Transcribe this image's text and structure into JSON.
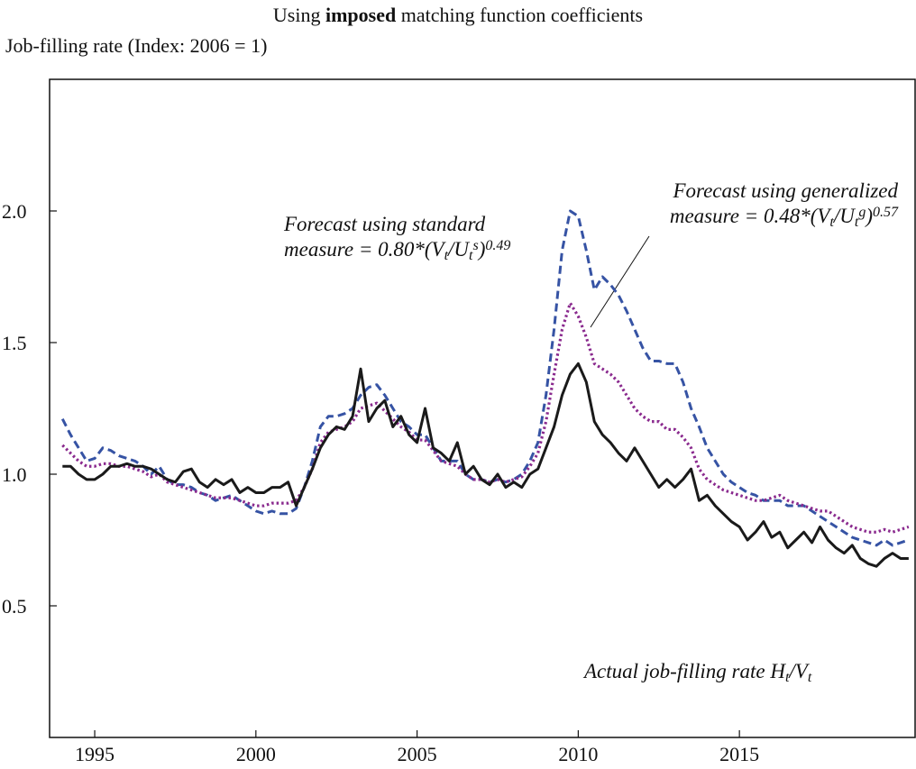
{
  "chart_data": {
    "type": "line",
    "title": [
      {
        "text": "Using "
      },
      {
        "text": "imposed",
        "bold": true
      },
      {
        "text": " matching function coefficients"
      }
    ],
    "y_label": "Job-filling rate (Index: 2006 = 1)",
    "xlim": [
      1993.6,
      2020.45
    ],
    "ylim": [
      0,
      2.5
    ],
    "xticks": [
      1995,
      2000,
      2005,
      2010,
      2015
    ],
    "yticks": [
      0.5,
      {
        "value": 1,
        "label": "1.0"
      },
      1.5,
      {
        "value": 2,
        "label": "2.0"
      }
    ],
    "x": [
      1994,
      1994.25,
      1994.5,
      1994.75,
      1995,
      1995.25,
      1995.5,
      1995.75,
      1996,
      1996.25,
      1996.5,
      1996.75,
      1997,
      1997.25,
      1997.5,
      1997.75,
      1998,
      1998.25,
      1998.5,
      1998.75,
      1999,
      1999.25,
      1999.5,
      1999.75,
      2000,
      2000.25,
      2000.5,
      2000.75,
      2001,
      2001.25,
      2001.5,
      2001.75,
      2002,
      2002.25,
      2002.5,
      2002.75,
      2003,
      2003.25,
      2003.5,
      2003.75,
      2004,
      2004.25,
      2004.5,
      2004.75,
      2005,
      2005.25,
      2005.5,
      2005.75,
      2006,
      2006.25,
      2006.5,
      2006.75,
      2007,
      2007.25,
      2007.5,
      2007.75,
      2008,
      2008.25,
      2008.5,
      2008.75,
      2009,
      2009.25,
      2009.5,
      2009.75,
      2010,
      2010.25,
      2010.5,
      2010.75,
      2011,
      2011.25,
      2011.5,
      2011.75,
      2012,
      2012.25,
      2012.5,
      2012.75,
      2013,
      2013.25,
      2013.5,
      2013.75,
      2014,
      2014.25,
      2014.5,
      2014.75,
      2015,
      2015.25,
      2015.5,
      2015.75,
      2016,
      2016.25,
      2016.5,
      2016.75,
      2017,
      2017.25,
      2017.5,
      2017.75,
      2018,
      2018.25,
      2018.5,
      2018.75,
      2019,
      2019.25,
      2019.5,
      2019.75,
      2020,
      2020.25
    ],
    "series": [
      {
        "color": "#1a1a1a",
        "dash": "solid",
        "label": [
          [
            {
              "text": "Actual job-filling rate H"
            },
            {
              "text": "t",
              "pos": "sub"
            },
            {
              "text": "/V"
            },
            {
              "text": "t",
              "pos": "sub"
            }
          ]
        ],
        "values": [
          1.03,
          1.03,
          1.0,
          0.98,
          0.98,
          1.0,
          1.03,
          1.03,
          1.04,
          1.03,
          1.03,
          1.02,
          1.0,
          0.98,
          0.97,
          1.01,
          1.02,
          0.97,
          0.95,
          0.98,
          0.96,
          0.98,
          0.93,
          0.95,
          0.93,
          0.93,
          0.95,
          0.95,
          0.97,
          0.88,
          0.95,
          1.02,
          1.1,
          1.15,
          1.18,
          1.17,
          1.22,
          1.4,
          1.2,
          1.25,
          1.28,
          1.18,
          1.22,
          1.15,
          1.12,
          1.25,
          1.1,
          1.08,
          1.05,
          1.12,
          1.0,
          1.03,
          0.98,
          0.96,
          1.0,
          0.95,
          0.97,
          0.95,
          1.0,
          1.02,
          1.1,
          1.18,
          1.3,
          1.38,
          1.42,
          1.35,
          1.2,
          1.15,
          1.12,
          1.08,
          1.05,
          1.1,
          1.05,
          1.0,
          0.95,
          0.98,
          0.95,
          0.98,
          1.02,
          0.9,
          0.92,
          0.88,
          0.85,
          0.82,
          0.8,
          0.75,
          0.78,
          0.82,
          0.76,
          0.78,
          0.72,
          0.75,
          0.78,
          0.74,
          0.8,
          0.75,
          0.72,
          0.7,
          0.73,
          0.68,
          0.66,
          0.65,
          0.68,
          0.7,
          0.68,
          0.68
        ]
      },
      {
        "color": "#3653a4",
        "dash": "dashed",
        "label": [
          [
            {
              "text": "Forecast using standard"
            }
          ],
          [
            {
              "text": "measure = 0.80*(V"
            },
            {
              "text": "t",
              "pos": "sub"
            },
            {
              "text": "/U"
            },
            {
              "text": "t",
              "pos": "sub"
            },
            {
              "text": "s",
              "pos": "sup"
            },
            {
              "text": ")"
            },
            {
              "text": "0.49",
              "pos": "sup"
            }
          ]
        ],
        "values": [
          1.21,
          1.15,
          1.1,
          1.05,
          1.06,
          1.1,
          1.09,
          1.07,
          1.06,
          1.05,
          1.03,
          1.0,
          1.03,
          0.98,
          0.96,
          0.96,
          0.95,
          0.93,
          0.92,
          0.9,
          0.91,
          0.92,
          0.9,
          0.88,
          0.86,
          0.85,
          0.86,
          0.85,
          0.85,
          0.87,
          0.95,
          1.05,
          1.18,
          1.22,
          1.22,
          1.23,
          1.25,
          1.3,
          1.33,
          1.34,
          1.3,
          1.25,
          1.2,
          1.18,
          1.15,
          1.15,
          1.1,
          1.05,
          1.05,
          1.05,
          1.0,
          0.98,
          0.98,
          0.97,
          0.98,
          0.97,
          0.98,
          1.0,
          1.05,
          1.12,
          1.3,
          1.55,
          1.85,
          2.0,
          1.98,
          1.85,
          1.7,
          1.75,
          1.72,
          1.68,
          1.62,
          1.55,
          1.48,
          1.43,
          1.43,
          1.42,
          1.42,
          1.35,
          1.25,
          1.18,
          1.1,
          1.05,
          1.0,
          0.97,
          0.95,
          0.93,
          0.92,
          0.9,
          0.9,
          0.9,
          0.88,
          0.88,
          0.88,
          0.86,
          0.84,
          0.82,
          0.8,
          0.78,
          0.76,
          0.75,
          0.74,
          0.73,
          0.75,
          0.73,
          0.74,
          0.75
        ]
      },
      {
        "color": "#8a2a8e",
        "dash": "dotted",
        "label": [
          [
            {
              "text": "Forecast using generalized"
            }
          ],
          [
            {
              "text": "measure = 0.48*(V"
            },
            {
              "text": "t",
              "pos": "sub"
            },
            {
              "text": "/U"
            },
            {
              "text": "t",
              "pos": "sub"
            },
            {
              "text": "g",
              "pos": "sup"
            },
            {
              "text": ")"
            },
            {
              "text": "0.57",
              "pos": "sup"
            }
          ]
        ],
        "values": [
          1.11,
          1.08,
          1.05,
          1.03,
          1.03,
          1.04,
          1.04,
          1.03,
          1.03,
          1.02,
          1.01,
          0.99,
          1.0,
          0.97,
          0.96,
          0.95,
          0.94,
          0.93,
          0.92,
          0.91,
          0.91,
          0.91,
          0.9,
          0.89,
          0.88,
          0.88,
          0.89,
          0.89,
          0.89,
          0.9,
          0.95,
          1.02,
          1.12,
          1.16,
          1.17,
          1.18,
          1.2,
          1.25,
          1.26,
          1.27,
          1.24,
          1.21,
          1.18,
          1.16,
          1.13,
          1.13,
          1.09,
          1.05,
          1.04,
          1.03,
          1.0,
          0.98,
          0.98,
          0.97,
          0.98,
          0.97,
          0.98,
          0.99,
          1.03,
          1.08,
          1.2,
          1.38,
          1.55,
          1.65,
          1.6,
          1.52,
          1.42,
          1.4,
          1.38,
          1.35,
          1.3,
          1.25,
          1.22,
          1.2,
          1.2,
          1.17,
          1.17,
          1.14,
          1.1,
          1.02,
          0.98,
          0.96,
          0.94,
          0.93,
          0.92,
          0.91,
          0.9,
          0.9,
          0.91,
          0.92,
          0.9,
          0.89,
          0.88,
          0.87,
          0.86,
          0.86,
          0.84,
          0.82,
          0.8,
          0.79,
          0.78,
          0.78,
          0.79,
          0.78,
          0.79,
          0.8
        ]
      }
    ]
  }
}
